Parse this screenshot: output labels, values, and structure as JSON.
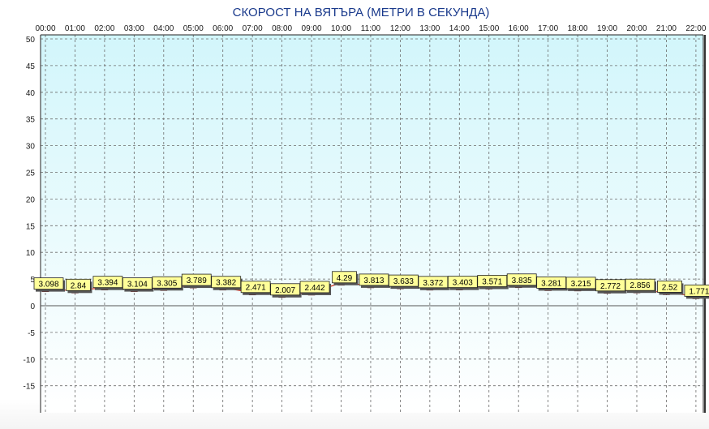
{
  "chart_data": {
    "type": "line",
    "title": "СКОРОСТ НА ВЯТЪРА (МЕТРИ В СЕКУНДА)",
    "categories": [
      "00:00",
      "01:00",
      "02:00",
      "03:00",
      "04:00",
      "05:00",
      "06:00",
      "07:00",
      "08:00",
      "09:00",
      "10:00",
      "11:00",
      "12:00",
      "13:00",
      "14:00",
      "15:00",
      "16:00",
      "17:00",
      "18:00",
      "19:00",
      "20:00",
      "21:00",
      "22:00"
    ],
    "values": [
      3.098,
      2.84,
      3.394,
      3.104,
      3.305,
      3.789,
      3.382,
      2.471,
      2.007,
      2.442,
      4.29,
      3.813,
      3.633,
      3.372,
      3.403,
      3.571,
      3.835,
      3.281,
      3.215,
      2.772,
      2.856,
      2.52,
      1.771
    ],
    "data_labels": [
      "3.098",
      "2.84",
      "3.394",
      "3.104",
      "3.305",
      "3.789",
      "3.382",
      "2.471",
      "2.007",
      "2.442",
      "4.29",
      "3.813",
      "3.633",
      "3.372",
      "3.403",
      "3.571",
      "3.835",
      "3.281",
      "3.215",
      "2.772",
      "2.856",
      "2.52",
      "1.771"
    ],
    "yticks": [
      "50",
      "45",
      "40",
      "35",
      "30",
      "25",
      "20",
      "15",
      "10",
      "5",
      "0",
      "-5",
      "-10",
      "-15"
    ],
    "ylim": [
      -20,
      50
    ],
    "xlabel": "",
    "ylabel": "",
    "grid": true,
    "legend": "none"
  },
  "colors": {
    "plot_top": "#d2f6fb",
    "plot_bottom": "#ffffff",
    "grid": "#6b6b6b",
    "line": "#e0301e",
    "marker": "#b00000",
    "label_fill": "#ffff99",
    "title": "#1a3a8c"
  }
}
